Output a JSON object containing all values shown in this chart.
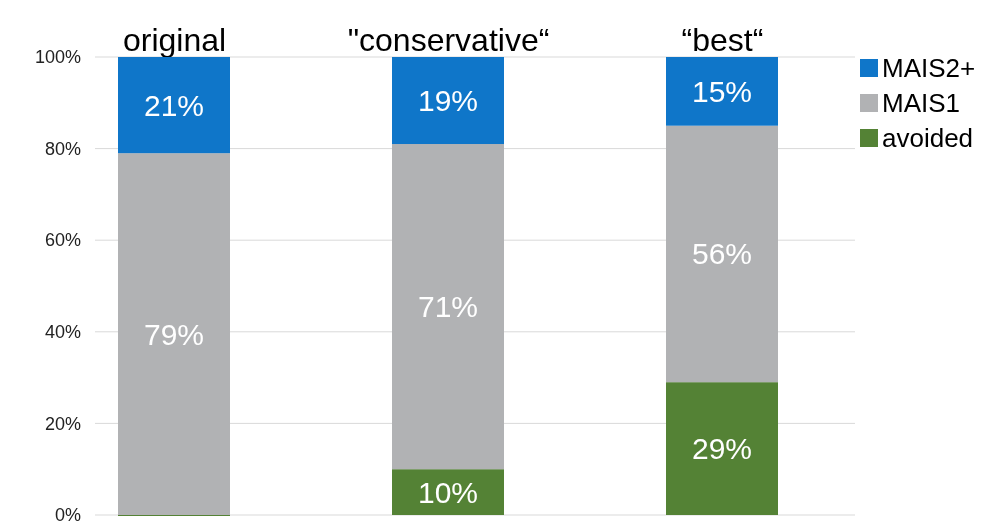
{
  "chart_data": {
    "type": "bar",
    "stacked": true,
    "categories": [
      "original",
      "\"conservative“",
      "“best“"
    ],
    "series": [
      {
        "name": "avoided",
        "color": "#548235",
        "values": [
          0,
          10,
          29
        ],
        "value_labels": [
          null,
          "10%",
          "29%"
        ]
      },
      {
        "name": "MAIS1",
        "color": "#b1b2b4",
        "values": [
          79,
          71,
          56
        ],
        "value_labels": [
          "79%",
          "71%",
          "56%"
        ]
      },
      {
        "name": "MAIS2+",
        "color": "#0f76c9",
        "values": [
          21,
          19,
          15
        ],
        "value_labels": [
          "21%",
          "19%",
          "15%"
        ]
      }
    ],
    "ylim": [
      0,
      100
    ],
    "yticks": [
      {
        "value": 0,
        "label": "0%"
      },
      {
        "value": 20,
        "label": "20%"
      },
      {
        "value": 40,
        "label": "40%"
      },
      {
        "value": 60,
        "label": "60%"
      },
      {
        "value": 80,
        "label": "80%"
      },
      {
        "value": 100,
        "label": "100%"
      }
    ],
    "grid": "y",
    "legend": "top right"
  }
}
